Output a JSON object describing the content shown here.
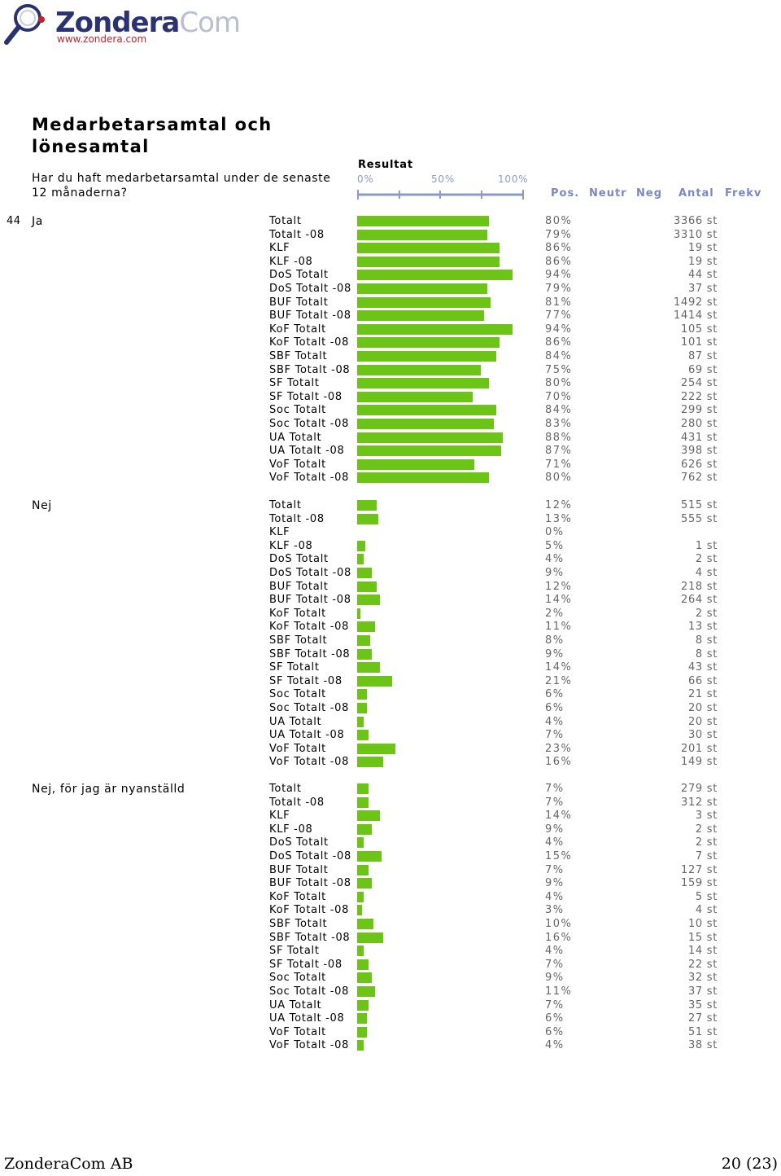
{
  "logo": {
    "brand_main": "Zondera",
    "brand_suffix": "Com",
    "url": "www.zondera.com"
  },
  "title": "Medarbetarsamtal och lönesamtal",
  "question": "Har du haft medarbetarsamtal under de senaste 12 månaderna?",
  "question_number": "44",
  "header": {
    "result_label": "Resultat",
    "scale_labels": [
      "0%",
      "50%",
      "100%"
    ],
    "columns": [
      "Pos.",
      "Neutr",
      "Neg",
      "Antal",
      "Frekv"
    ]
  },
  "footer": {
    "company": "ZonderaCom AB",
    "page": "20 (23)"
  },
  "colors": {
    "bar": "#6cc417",
    "header_blue": "#7a88c8",
    "logo_navy": "#2a3270",
    "logo_red": "#c2232a"
  },
  "chart_data": {
    "type": "bar",
    "orientation": "horizontal",
    "xlim": [
      0,
      100
    ],
    "groups": [
      {
        "answer": "Ja",
        "rows": [
          {
            "label": "Totalt",
            "percent": 80,
            "pct_text": "80%",
            "count_text": "3366 st"
          },
          {
            "label": "Totalt -08",
            "percent": 79,
            "pct_text": "79%",
            "count_text": "3310 st"
          },
          {
            "label": "KLF",
            "percent": 86,
            "pct_text": "86%",
            "count_text": "19 st"
          },
          {
            "label": "KLF -08",
            "percent": 86,
            "pct_text": "86%",
            "count_text": "19 st"
          },
          {
            "label": "DoS Totalt",
            "percent": 94,
            "pct_text": "94%",
            "count_text": "44 st"
          },
          {
            "label": "DoS Totalt -08",
            "percent": 79,
            "pct_text": "79%",
            "count_text": "37 st"
          },
          {
            "label": "BUF Totalt",
            "percent": 81,
            "pct_text": "81%",
            "count_text": "1492 st"
          },
          {
            "label": "BUF Totalt -08",
            "percent": 77,
            "pct_text": "77%",
            "count_text": "1414 st"
          },
          {
            "label": "KoF Totalt",
            "percent": 94,
            "pct_text": "94%",
            "count_text": "105 st"
          },
          {
            "label": "KoF Totalt -08",
            "percent": 86,
            "pct_text": "86%",
            "count_text": "101 st"
          },
          {
            "label": "SBF Totalt",
            "percent": 84,
            "pct_text": "84%",
            "count_text": "87 st"
          },
          {
            "label": "SBF Totalt -08",
            "percent": 75,
            "pct_text": "75%",
            "count_text": "69 st"
          },
          {
            "label": "SF Totalt",
            "percent": 80,
            "pct_text": "80%",
            "count_text": "254 st"
          },
          {
            "label": "SF Totalt -08",
            "percent": 70,
            "pct_text": "70%",
            "count_text": "222 st"
          },
          {
            "label": "Soc Totalt",
            "percent": 84,
            "pct_text": "84%",
            "count_text": "299 st"
          },
          {
            "label": "Soc Totalt -08",
            "percent": 83,
            "pct_text": "83%",
            "count_text": "280 st"
          },
          {
            "label": "UA Totalt",
            "percent": 88,
            "pct_text": "88%",
            "count_text": "431 st"
          },
          {
            "label": "UA Totalt -08",
            "percent": 87,
            "pct_text": "87%",
            "count_text": "398 st"
          },
          {
            "label": "VoF Totalt",
            "percent": 71,
            "pct_text": "71%",
            "count_text": "626 st"
          },
          {
            "label": "VoF Totalt -08",
            "percent": 80,
            "pct_text": "80%",
            "count_text": "762 st"
          }
        ]
      },
      {
        "answer": "Nej",
        "rows": [
          {
            "label": "Totalt",
            "percent": 12,
            "pct_text": "12%",
            "count_text": "515 st"
          },
          {
            "label": "Totalt -08",
            "percent": 13,
            "pct_text": "13%",
            "count_text": "555 st"
          },
          {
            "label": "KLF",
            "percent": 0,
            "pct_text": "0%",
            "count_text": ""
          },
          {
            "label": "KLF -08",
            "percent": 5,
            "pct_text": "5%",
            "count_text": "1 st"
          },
          {
            "label": "DoS Totalt",
            "percent": 4,
            "pct_text": "4%",
            "count_text": "2 st"
          },
          {
            "label": "DoS Totalt -08",
            "percent": 9,
            "pct_text": "9%",
            "count_text": "4 st"
          },
          {
            "label": "BUF Totalt",
            "percent": 12,
            "pct_text": "12%",
            "count_text": "218 st"
          },
          {
            "label": "BUF Totalt -08",
            "percent": 14,
            "pct_text": "14%",
            "count_text": "264 st"
          },
          {
            "label": "KoF Totalt",
            "percent": 2,
            "pct_text": "2%",
            "count_text": "2 st"
          },
          {
            "label": "KoF Totalt -08",
            "percent": 11,
            "pct_text": "11%",
            "count_text": "13 st"
          },
          {
            "label": "SBF Totalt",
            "percent": 8,
            "pct_text": "8%",
            "count_text": "8 st"
          },
          {
            "label": "SBF Totalt -08",
            "percent": 9,
            "pct_text": "9%",
            "count_text": "8 st"
          },
          {
            "label": "SF Totalt",
            "percent": 14,
            "pct_text": "14%",
            "count_text": "43 st"
          },
          {
            "label": "SF Totalt -08",
            "percent": 21,
            "pct_text": "21%",
            "count_text": "66 st"
          },
          {
            "label": "Soc Totalt",
            "percent": 6,
            "pct_text": "6%",
            "count_text": "21 st"
          },
          {
            "label": "Soc Totalt -08",
            "percent": 6,
            "pct_text": "6%",
            "count_text": "20 st"
          },
          {
            "label": "UA Totalt",
            "percent": 4,
            "pct_text": "4%",
            "count_text": "20 st"
          },
          {
            "label": "UA Totalt -08",
            "percent": 7,
            "pct_text": "7%",
            "count_text": "30 st"
          },
          {
            "label": "VoF Totalt",
            "percent": 23,
            "pct_text": "23%",
            "count_text": "201 st"
          },
          {
            "label": "VoF Totalt -08",
            "percent": 16,
            "pct_text": "16%",
            "count_text": "149 st"
          }
        ]
      },
      {
        "answer": "Nej, för jag är nyanställd",
        "rows": [
          {
            "label": "Totalt",
            "percent": 7,
            "pct_text": "7%",
            "count_text": "279 st"
          },
          {
            "label": "Totalt -08",
            "percent": 7,
            "pct_text": "7%",
            "count_text": "312 st"
          },
          {
            "label": "KLF",
            "percent": 14,
            "pct_text": "14%",
            "count_text": "3 st"
          },
          {
            "label": "KLF -08",
            "percent": 9,
            "pct_text": "9%",
            "count_text": "2 st"
          },
          {
            "label": "DoS Totalt",
            "percent": 4,
            "pct_text": "4%",
            "count_text": "2 st"
          },
          {
            "label": "DoS Totalt -08",
            "percent": 15,
            "pct_text": "15%",
            "count_text": "7 st"
          },
          {
            "label": "BUF Totalt",
            "percent": 7,
            "pct_text": "7%",
            "count_text": "127 st"
          },
          {
            "label": "BUF Totalt -08",
            "percent": 9,
            "pct_text": "9%",
            "count_text": "159 st"
          },
          {
            "label": "KoF Totalt",
            "percent": 4,
            "pct_text": "4%",
            "count_text": "5 st"
          },
          {
            "label": "KoF Totalt -08",
            "percent": 3,
            "pct_text": "3%",
            "count_text": "4 st"
          },
          {
            "label": "SBF Totalt",
            "percent": 10,
            "pct_text": "10%",
            "count_text": "10 st"
          },
          {
            "label": "SBF Totalt -08",
            "percent": 16,
            "pct_text": "16%",
            "count_text": "15 st"
          },
          {
            "label": "SF Totalt",
            "percent": 4,
            "pct_text": "4%",
            "count_text": "14 st"
          },
          {
            "label": "SF Totalt -08",
            "percent": 7,
            "pct_text": "7%",
            "count_text": "22 st"
          },
          {
            "label": "Soc Totalt",
            "percent": 9,
            "pct_text": "9%",
            "count_text": "32 st"
          },
          {
            "label": "Soc Totalt -08",
            "percent": 11,
            "pct_text": "11%",
            "count_text": "37 st"
          },
          {
            "label": "UA Totalt",
            "percent": 7,
            "pct_text": "7%",
            "count_text": "35 st"
          },
          {
            "label": "UA Totalt -08",
            "percent": 6,
            "pct_text": "6%",
            "count_text": "27 st"
          },
          {
            "label": "VoF Totalt",
            "percent": 6,
            "pct_text": "6%",
            "count_text": "51 st"
          },
          {
            "label": "VoF Totalt -08",
            "percent": 4,
            "pct_text": "4%",
            "count_text": "38 st"
          }
        ]
      }
    ]
  }
}
